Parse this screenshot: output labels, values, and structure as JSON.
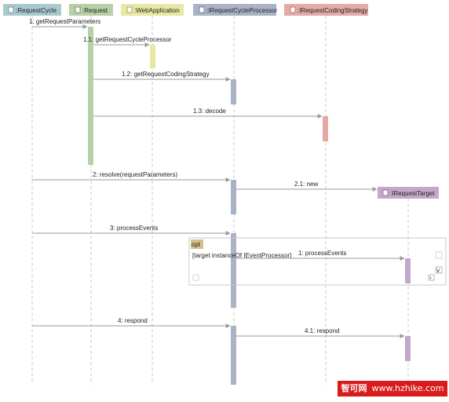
{
  "lifelines": [
    {
      "id": "requestcycle",
      "label": ":RequestCycle",
      "color": "#a9c9cf"
    },
    {
      "id": "request",
      "label": ":Request",
      "color": "#b7d0a6"
    },
    {
      "id": "webapplication",
      "label": ":WebApplication",
      "color": "#e6e8a4"
    },
    {
      "id": "irequestcycleprocessor",
      "label": ":IRequestCycleProcessor",
      "color": "#a9b3c6"
    },
    {
      "id": "irequestcodingstrategy",
      "label": ":IRequestCodingStrategy",
      "color": "#e6aaa6"
    },
    {
      "id": "irequesttarget",
      "label": ":IRequestTarget",
      "color": "#c2a9cc"
    }
  ],
  "messages": [
    {
      "id": "msg-1",
      "label": "1: getRequestParameters"
    },
    {
      "id": "msg-1-1",
      "label": "1.1: getRequestCycleProcessor"
    },
    {
      "id": "msg-1-2",
      "label": "1.2: getRequestCodingStrategy"
    },
    {
      "id": "msg-1-3",
      "label": "1.3: decode"
    },
    {
      "id": "msg-2",
      "label": "2: resolve(requestParameters)"
    },
    {
      "id": "msg-2-1",
      "label": "2.1: new"
    },
    {
      "id": "msg-3",
      "label": "3: processEvents"
    },
    {
      "id": "msg-3-1",
      "label": "1: processEvents"
    },
    {
      "id": "msg-4",
      "label": "4: respond"
    },
    {
      "id": "msg-4-1",
      "label": "4.1: respond"
    }
  ],
  "fragment": {
    "guard": "[target instanceOf IEventProcessor]",
    "tag": "opt"
  },
  "watermark": {
    "cn": "智可网",
    "url": "www.hzhike.com"
  }
}
